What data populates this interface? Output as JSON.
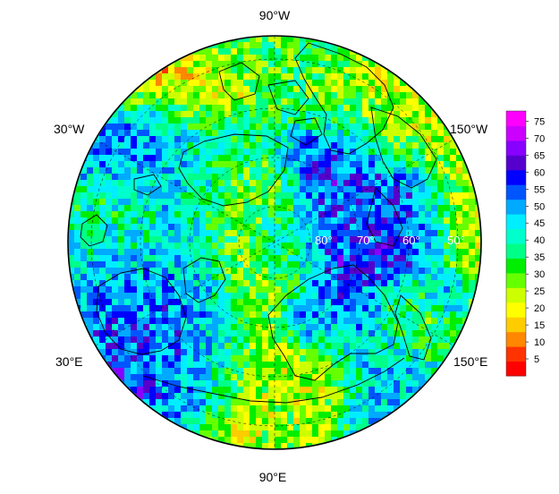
{
  "map": {
    "projection": "polar-stereographic",
    "longitude_labels": [
      {
        "id": "top",
        "text": "90°W"
      },
      {
        "id": "upper-left",
        "text": "30°W"
      },
      {
        "id": "upper-right",
        "text": "150°W"
      },
      {
        "id": "lower-left",
        "text": "30°E"
      },
      {
        "id": "lower-right",
        "text": "150°E"
      },
      {
        "id": "bottom",
        "text": "90°E"
      }
    ],
    "latitude_labels": [
      "80°",
      "70°",
      "60°",
      "50°"
    ]
  },
  "colorbar": {
    "ticks": [
      "75",
      "70",
      "65",
      "60",
      "55",
      "50",
      "45",
      "40",
      "35",
      "30",
      "25",
      "20",
      "15",
      "10",
      "5"
    ],
    "min": 0,
    "max": 78,
    "colors": [
      "#ff0000",
      "#ff3300",
      "#ff8800",
      "#ffcc00",
      "#ffff00",
      "#ccff00",
      "#66ff00",
      "#00ee00",
      "#00ff88",
      "#00ffcc",
      "#00eeff",
      "#00aaff",
      "#0055ff",
      "#0000ff",
      "#5500cc",
      "#8800ff",
      "#cc00ff",
      "#ff00ff"
    ]
  }
}
